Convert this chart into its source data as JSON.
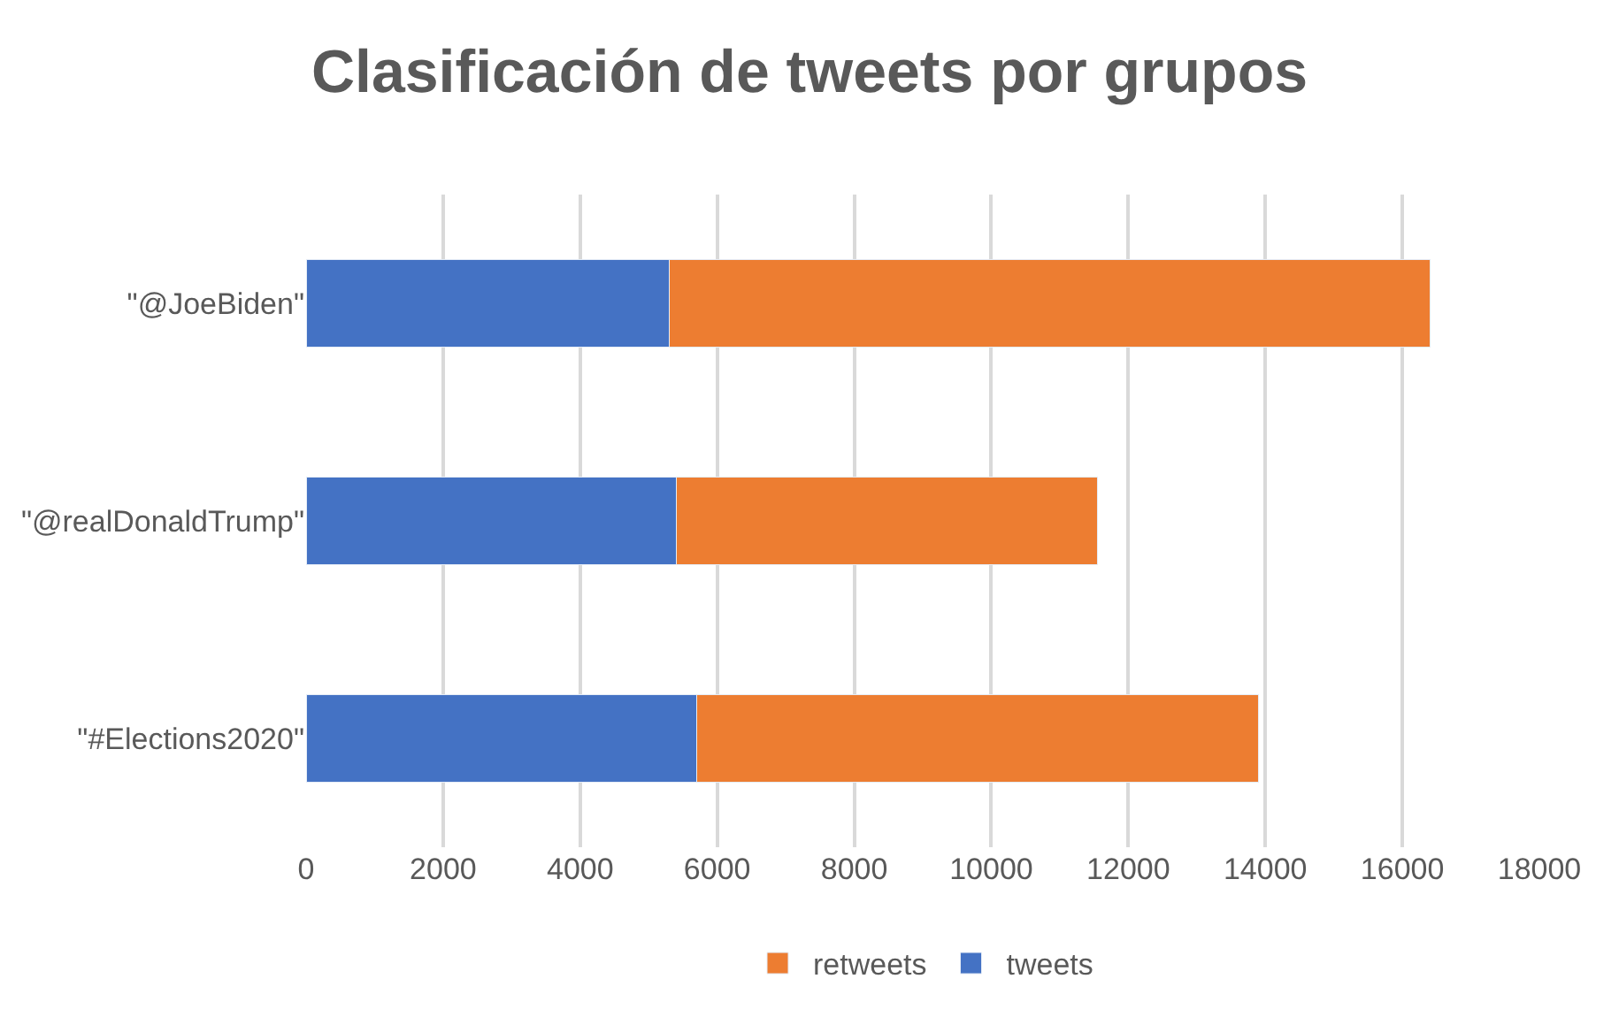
{
  "chart_data": {
    "type": "bar",
    "orientation": "horizontal",
    "stacked": true,
    "title": "Clasificación de tweets por grupos",
    "categories": [
      "\"@JoeBiden\"",
      "\"@realDonaldTrump\"",
      "\"#Elections2020\""
    ],
    "series": [
      {
        "name": "tweets",
        "color": "#4472c4",
        "values": [
          5300,
          5400,
          5700
        ]
      },
      {
        "name": "retweets",
        "color": "#ed7d31",
        "values": [
          11100,
          6150,
          8200
        ]
      }
    ],
    "xlim": [
      0,
      18000
    ],
    "xticks": [
      0,
      2000,
      4000,
      6000,
      8000,
      10000,
      12000,
      14000,
      16000,
      18000
    ],
    "grid": "x",
    "legend": "bottom"
  }
}
